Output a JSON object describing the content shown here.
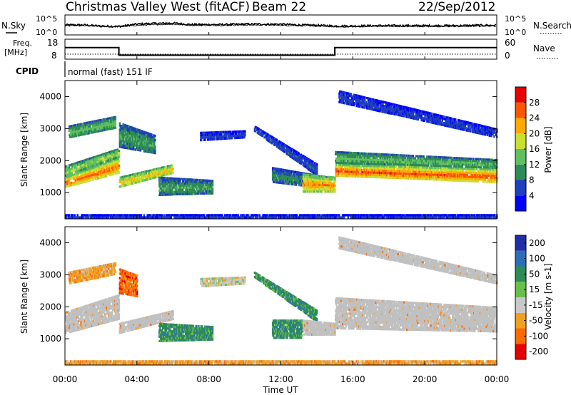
{
  "header": {
    "title": "Christmas Valley West (fitACF)",
    "beam": "Beam 22",
    "date": "22/Sep/2012"
  },
  "time_axis": {
    "label": "Time UT",
    "range_hours": [
      0,
      24
    ],
    "ticks": [
      "00:00",
      "04:00",
      "08:00",
      "12:00",
      "16:00",
      "20:00",
      "00:00"
    ]
  },
  "noise_panel": {
    "left_label": "N.Sky",
    "right_label": "N.Search",
    "left_ticks": [
      "10^5",
      "10^0"
    ],
    "right_ticks": [
      "10^5",
      "10^0"
    ]
  },
  "freq_panel": {
    "left_label_1": "Freq.",
    "left_label_2": "[MHz]",
    "right_label": "Nave",
    "left_ticks": [
      "18",
      "8"
    ],
    "right_ticks": [
      "60",
      "0"
    ],
    "cpid_label": "CPID",
    "cpid_text": "normal (fast) 151 IF"
  },
  "colors": {
    "power": [
      "#0000ff",
      "#1f3fbf",
      "#2e8b57",
      "#5fc05f",
      "#c8e030",
      "#ffaa00",
      "#ff5500",
      "#e60000"
    ],
    "velocity": [
      "#1f2fa8",
      "#2c6fb8",
      "#2e8b57",
      "#66c04a",
      "#c8c8c8",
      "#f0a020",
      "#ff6a00",
      "#e60000"
    ],
    "ground_scatter": "#c0c0c0"
  },
  "chart_data": [
    {
      "type": "line",
      "title": "",
      "xlabel": "",
      "ylabel": "N.Sky",
      "x_range": [
        0,
        24
      ],
      "ylim_log10": [
        0,
        5
      ],
      "series": [
        {
          "name": "N.Sky",
          "x": [
            0,
            1,
            2,
            3,
            4,
            5,
            6,
            7,
            8,
            9,
            10,
            11,
            12,
            13,
            14,
            15,
            16,
            17,
            18,
            19,
            20,
            21,
            22,
            23,
            24
          ],
          "y_log10": [
            2.5,
            2.5,
            2.2,
            2.1,
            2.7,
            2.9,
            3.0,
            2.6,
            2.6,
            2.6,
            2.7,
            2.7,
            2.7,
            2.5,
            2.4,
            2.2,
            2.2,
            2.3,
            2.3,
            2.3,
            2.3,
            2.3,
            2.3,
            2.4,
            2.4
          ]
        },
        {
          "name": "N.Search",
          "x": [
            0,
            1,
            2,
            3,
            4,
            5,
            6,
            7,
            8,
            9,
            10,
            11,
            12,
            13,
            14,
            15,
            16,
            17,
            18,
            19,
            20,
            21,
            22,
            23,
            24
          ],
          "y_log10": [
            2.3,
            2.3,
            2.1,
            2.0,
            2.4,
            2.6,
            2.7,
            2.4,
            2.4,
            2.4,
            2.5,
            2.5,
            2.4,
            2.3,
            2.2,
            2.0,
            2.0,
            2.1,
            2.1,
            2.1,
            2.1,
            2.1,
            2.1,
            2.2,
            2.2
          ]
        }
      ]
    },
    {
      "type": "line",
      "title": "",
      "xlabel": "",
      "ylabel": "Freq. [MHz]",
      "x_range": [
        0,
        24
      ],
      "ylim": [
        8,
        18
      ],
      "series": [
        {
          "name": "Freq.",
          "x": [
            0,
            3,
            3,
            15,
            15,
            24
          ],
          "y": [
            13.8,
            13.8,
            10.0,
            10.0,
            13.8,
            13.8
          ]
        },
        {
          "name": "Nave",
          "x": [
            0,
            24
          ],
          "y_nave": [
            15,
            15
          ]
        }
      ],
      "y2lim": [
        0,
        60
      ]
    },
    {
      "type": "heatmap",
      "title": "",
      "xlabel": "",
      "ylabel": "Slant Range [km]",
      "x_range": [
        0,
        24
      ],
      "ylim": [
        180,
        4500
      ],
      "y_ticks": [
        1000,
        2000,
        3000,
        4000
      ],
      "colorbar": {
        "label": "Power [dB]",
        "ticks": [
          4,
          8,
          12,
          16,
          20,
          24,
          28
        ],
        "range": [
          0,
          32
        ]
      },
      "bands": [
        {
          "t0": 0.0,
          "t1": 3.0,
          "r0": 1150,
          "r1": 1500,
          "r0_end": 1600,
          "r1_end": 2100,
          "value": 26
        },
        {
          "t0": 0.0,
          "t1": 3.0,
          "r0": 1500,
          "r1": 1850,
          "r0_end": 2100,
          "r1_end": 2400,
          "value": 17
        },
        {
          "t0": 0.2,
          "t1": 2.8,
          "r0": 2700,
          "r1": 3100,
          "r0_end": 3000,
          "r1_end": 3400,
          "value": 14
        },
        {
          "t0": 3.0,
          "t1": 6.0,
          "r0": 1150,
          "r1": 1500,
          "r0_end": 1600,
          "r1_end": 1900,
          "value": 22
        },
        {
          "t0": 3.0,
          "t1": 5.0,
          "r0": 2400,
          "r1": 3200,
          "r0_end": 2200,
          "r1_end": 2800,
          "value": 12
        },
        {
          "t0": 5.2,
          "t1": 8.2,
          "r0": 900,
          "r1": 1500,
          "r0_end": 950,
          "r1_end": 1400,
          "value": 12
        },
        {
          "t0": 7.5,
          "t1": 10.0,
          "r0": 2600,
          "r1": 2900,
          "r0_end": 2700,
          "r1_end": 2950,
          "value": 6
        },
        {
          "t0": 10.5,
          "t1": 14.0,
          "r0": 2900,
          "r1": 3100,
          "r0_end": 1500,
          "r1_end": 1900,
          "value": 7
        },
        {
          "t0": 11.5,
          "t1": 14.6,
          "r0": 1300,
          "r1": 1800,
          "r0_end": 1100,
          "r1_end": 1500,
          "value": 10
        },
        {
          "t0": 13.2,
          "t1": 15.0,
          "r0": 1000,
          "r1": 1600,
          "r0_end": 1000,
          "r1_end": 1500,
          "value": 24
        },
        {
          "t0": 15.0,
          "t1": 24.0,
          "r0": 1500,
          "r1": 1900,
          "r0_end": 1300,
          "r1_end": 1750,
          "value": 27
        },
        {
          "t0": 15.0,
          "t1": 24.0,
          "r0": 1900,
          "r1": 2300,
          "r0_end": 1750,
          "r1_end": 2050,
          "value": 14
        },
        {
          "t0": 15.2,
          "t1": 24.0,
          "r0": 3800,
          "r1": 4200,
          "r0_end": 2700,
          "r1_end": 3000,
          "value": 6
        },
        {
          "t0": 0.0,
          "t1": 24.0,
          "r0": 190,
          "r1": 330,
          "r0_end": 190,
          "r1_end": 330,
          "value": 5
        }
      ]
    },
    {
      "type": "heatmap",
      "title": "",
      "xlabel": "Time UT",
      "ylabel": "Slant Range [km]",
      "x_range": [
        0,
        24
      ],
      "ylim": [
        180,
        4500
      ],
      "y_ticks": [
        1000,
        2000,
        3000,
        4000
      ],
      "colorbar": {
        "label": "Velocity [m s-1]",
        "ticks": [
          200,
          100,
          50,
          15,
          -15,
          -50,
          -100,
          -200
        ]
      },
      "bands": [
        {
          "t0": 0.0,
          "t1": 3.0,
          "r0": 1150,
          "r1": 1850,
          "r0_end": 1600,
          "r1_end": 2400,
          "value": "gs"
        },
        {
          "t0": 0.2,
          "t1": 2.8,
          "r0": 2700,
          "r1": 3100,
          "r0_end": 3000,
          "r1_end": 3400,
          "value": "-50"
        },
        {
          "t0": 3.0,
          "t1": 6.0,
          "r0": 1150,
          "r1": 1500,
          "r0_end": 1600,
          "r1_end": 1900,
          "value": "gs"
        },
        {
          "t0": 3.0,
          "t1": 4.0,
          "r0": 2400,
          "r1": 3200,
          "r0_end": 2300,
          "r1_end": 3000,
          "value": "-100"
        },
        {
          "t0": 5.2,
          "t1": 8.2,
          "r0": 900,
          "r1": 1500,
          "r0_end": 950,
          "r1_end": 1400,
          "value": "50"
        },
        {
          "t0": 7.5,
          "t1": 10.0,
          "r0": 2600,
          "r1": 2900,
          "r0_end": 2700,
          "r1_end": 2950,
          "value": "-15"
        },
        {
          "t0": 10.5,
          "t1": 14.0,
          "r0": 2900,
          "r1": 3100,
          "r0_end": 1500,
          "r1_end": 1900,
          "value": "50"
        },
        {
          "t0": 11.5,
          "t1": 13.2,
          "r0": 1000,
          "r1": 1600,
          "r0_end": 1000,
          "r1_end": 1600,
          "value": "50"
        },
        {
          "t0": 13.2,
          "t1": 15.0,
          "r0": 1100,
          "r1": 1600,
          "r0_end": 1100,
          "r1_end": 1500,
          "value": "gs"
        },
        {
          "t0": 15.0,
          "t1": 24.0,
          "r0": 1300,
          "r1": 2300,
          "r0_end": 1200,
          "r1_end": 2000,
          "value": "gs"
        },
        {
          "t0": 15.2,
          "t1": 24.0,
          "r0": 3800,
          "r1": 4200,
          "r0_end": 2700,
          "r1_end": 3000,
          "value": "gs"
        },
        {
          "t0": 0.0,
          "t1": 24.0,
          "r0": 190,
          "r1": 330,
          "r0_end": 190,
          "r1_end": 330,
          "value": "-50"
        }
      ]
    }
  ]
}
